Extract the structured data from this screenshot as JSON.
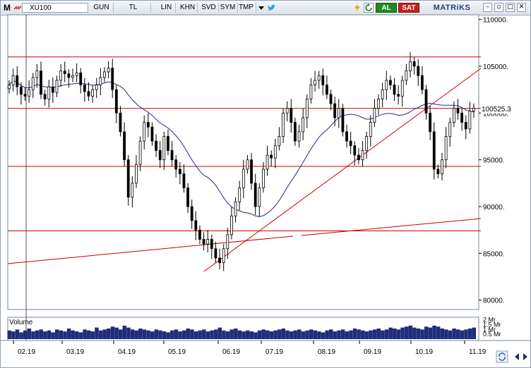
{
  "toolbar": {
    "m_label": "M",
    "symbol": "XU100",
    "period": "GUN",
    "currency": "TL",
    "scale": "LIN",
    "khn": "KHN",
    "svd": "SVD",
    "sym": "SYM",
    "tmp": "TMP",
    "buy": "AL",
    "sell": "SAT",
    "brand": "MATRiKS"
  },
  "colors": {
    "candle": "#000000",
    "ma_line": "#1f2d7a",
    "trend_line": "#cc0000",
    "volume": "#1f2d7a",
    "al_button": "#1f8a1f",
    "sat_button": "#c81e1e"
  },
  "chart_data": {
    "type": "candlestick",
    "title": "",
    "last_value_label": "100525.3",
    "y_ticks": [
      "110000.",
      "105000.",
      "100000.",
      "95000.",
      "90000.",
      "85000.",
      "80000."
    ],
    "y_tick_values": [
      110000,
      105000,
      100000,
      95000,
      90000,
      85000,
      80000
    ],
    "ylim": [
      79000,
      110500
    ],
    "x_tick_labels": [
      "02.19",
      "03.19",
      "04.19",
      "05.19",
      "06.19",
      "07.19",
      "08.19",
      "09.19",
      "10.19",
      "11.19"
    ],
    "volume_label": "Volume",
    "volume_ticks": [
      "2 Mr",
      "1.5 Mr",
      "1 Mr",
      "0.5 Mr"
    ],
    "volume_tick_values": [
      2,
      1.5,
      1,
      0.5
    ],
    "horizontal_levels": [
      106000,
      100500,
      94300,
      87400
    ],
    "closes": [
      103000,
      104000,
      102800,
      102000,
      101800,
      102500,
      103800,
      104500,
      102000,
      101500,
      102800,
      102200,
      103500,
      104500,
      104200,
      103800,
      104000,
      104300,
      103000,
      102300,
      101800,
      102500,
      103000,
      103800,
      104400,
      104800,
      102500,
      100000,
      98000,
      95000,
      91000,
      92500,
      94500,
      97000,
      99000,
      98500,
      97000,
      96000,
      95000,
      97500,
      96000,
      95000,
      94000,
      93500,
      92000,
      90000,
      88500,
      87500,
      86500,
      86000,
      86500,
      85500,
      84500,
      84000,
      85500,
      87000,
      89000,
      90500,
      92000,
      94000,
      95000,
      92500,
      90000,
      92000,
      94000,
      95500,
      95200,
      96500,
      97500,
      100000,
      100500,
      99000,
      97000,
      98000,
      99500,
      101500,
      103000,
      103500,
      104000,
      103000,
      102000,
      101000,
      99500,
      100500,
      98000,
      97000,
      96500,
      95500,
      95000,
      96000,
      97500,
      99000,
      100500,
      101500,
      102500,
      103500,
      103000,
      102000,
      101800,
      103500,
      104500,
      105500,
      105000,
      104000,
      102500,
      100000,
      98000,
      94000,
      93500,
      95000,
      97500,
      99000,
      100500,
      100000,
      99000,
      98300,
      100200,
      100525
    ],
    "volumes": [
      0.9,
      0.8,
      1.0,
      0.7,
      0.9,
      1.1,
      0.8,
      0.9,
      1.0,
      0.8,
      0.9,
      0.7,
      1.0,
      0.9,
      0.8,
      1.1,
      0.9,
      0.8,
      0.7,
      1.0,
      0.9,
      0.8,
      1.2,
      0.9,
      1.0,
      1.1,
      1.3,
      1.2,
      1.0,
      1.4,
      1.2,
      1.0,
      0.9,
      1.1,
      1.0,
      0.9,
      0.8,
      1.0,
      0.9,
      0.8,
      0.7,
      0.9,
      1.0,
      0.8,
      0.9,
      1.1,
      1.0,
      0.8,
      0.9,
      1.0,
      0.8,
      0.9,
      1.0,
      1.2,
      0.9,
      0.8,
      1.0,
      1.1,
      0.9,
      0.8,
      0.9,
      0.8,
      0.7,
      0.9,
      1.0,
      0.9,
      0.8,
      0.9,
      1.0,
      1.1,
      0.9,
      0.8,
      0.9,
      1.0,
      0.8,
      0.9,
      1.0,
      0.9,
      0.8,
      0.7,
      0.9,
      1.0,
      0.8,
      0.9,
      1.0,
      0.8,
      0.9,
      1.1,
      1.0,
      0.9,
      0.8,
      0.9,
      1.0,
      1.1,
      0.9,
      1.0,
      1.2,
      1.1,
      1.0,
      1.2,
      1.3,
      1.4,
      1.2,
      1.1,
      1.0,
      1.3,
      1.2,
      1.4,
      1.3,
      1.1,
      1.0,
      0.9,
      1.1,
      1.0,
      0.9,
      1.0,
      1.1,
      1.2
    ]
  }
}
